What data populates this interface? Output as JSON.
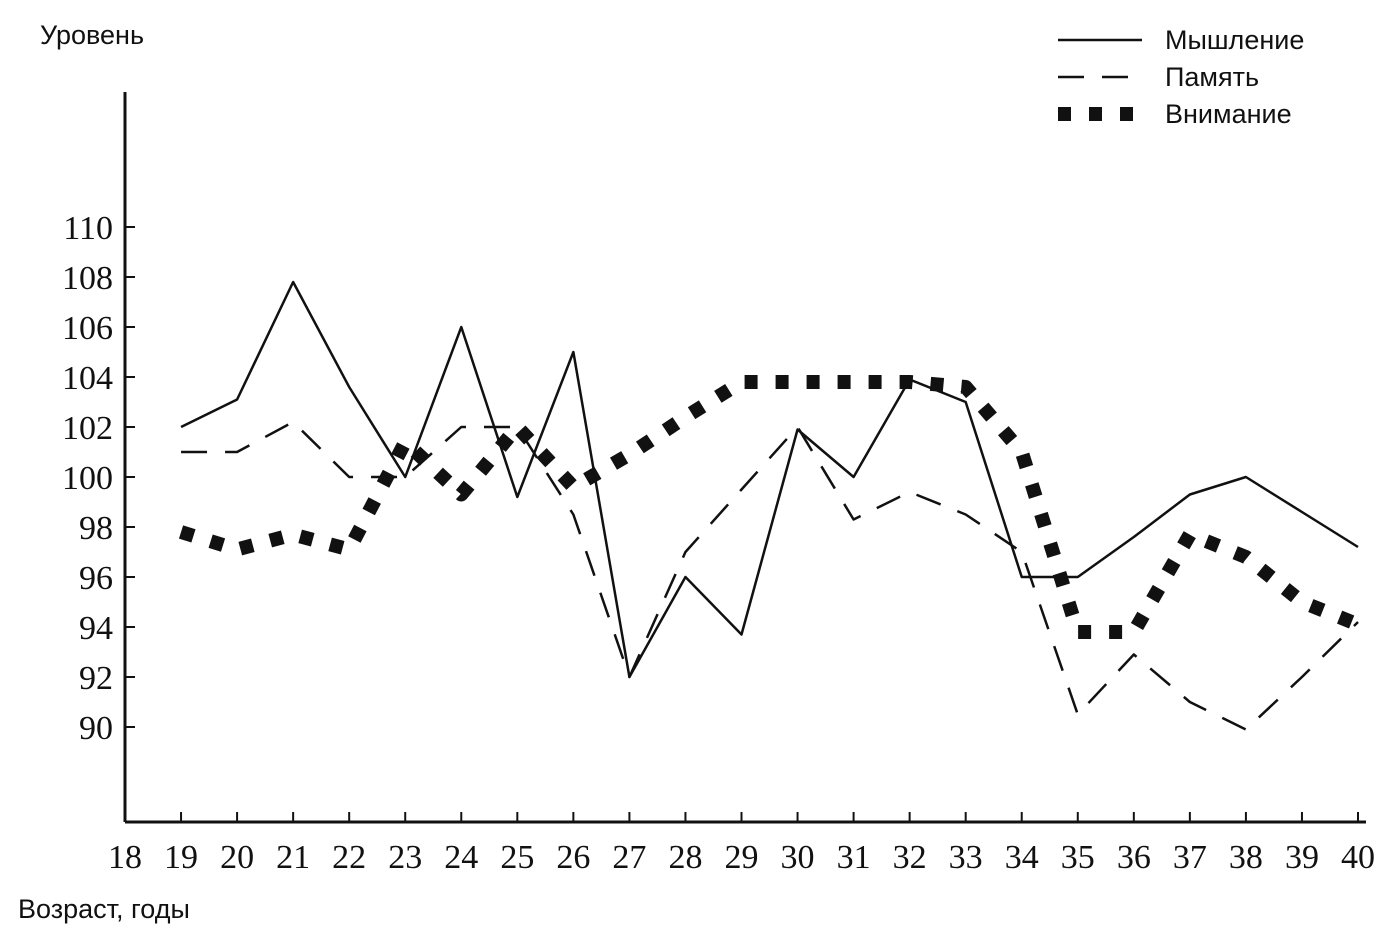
{
  "chart_data": {
    "type": "line",
    "y_label": "Уровень",
    "x_label": "Возраст, годы",
    "x": [
      19,
      20,
      21,
      22,
      23,
      24,
      25,
      26,
      27,
      28,
      29,
      30,
      31,
      32,
      33,
      34,
      35,
      36,
      37,
      38,
      39,
      40
    ],
    "xlim": [
      18,
      40
    ],
    "xticks": [
      18,
      19,
      20,
      21,
      22,
      23,
      24,
      25,
      26,
      27,
      28,
      29,
      30,
      31,
      32,
      33,
      34,
      35,
      36,
      37,
      38,
      39,
      40
    ],
    "ylim": [
      86.2,
      115.4
    ],
    "yticks": [
      90,
      92,
      94,
      96,
      98,
      100,
      102,
      104,
      106,
      108,
      110
    ],
    "legend": "top-right",
    "series": [
      {
        "name": "Мышление",
        "color": "#111111",
        "style": "solid",
        "values": [
          102,
          103.1,
          107.8,
          103.6,
          100,
          106,
          99.2,
          105,
          92,
          96,
          93.7,
          101.9,
          100,
          103.9,
          103,
          96,
          96,
          97.6,
          99.3,
          100,
          98.6,
          97.2
        ]
      },
      {
        "name": "Память",
        "color": "#111111",
        "style": "dashed",
        "values": [
          101,
          101,
          102.2,
          100,
          100,
          102,
          102,
          98.5,
          92,
          97,
          99.5,
          102,
          98.3,
          99.4,
          98.5,
          97,
          90.5,
          92.9,
          91,
          89.9,
          92,
          94.2
        ]
      },
      {
        "name": "Внимание",
        "color": "#111111",
        "style": "dotted",
        "values": [
          97.8,
          97.1,
          97.7,
          97.1,
          101.4,
          99.3,
          102,
          99.6,
          100.9,
          102.4,
          103.8,
          103.8,
          103.8,
          103.8,
          103.6,
          101,
          93.8,
          93.8,
          97.7,
          96.8,
          95,
          94.1
        ]
      }
    ]
  }
}
